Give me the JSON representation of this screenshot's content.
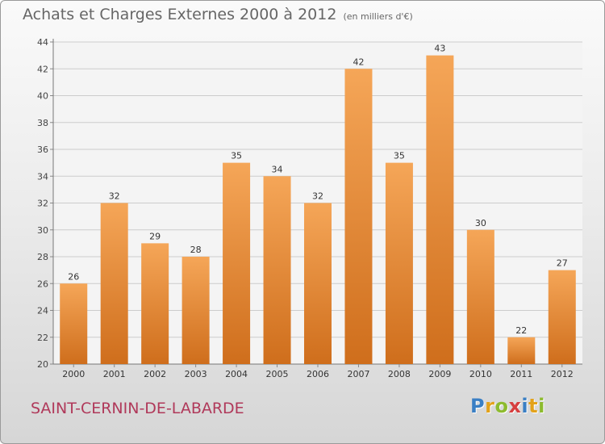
{
  "title": "Achats et Charges Externes 2000 à 2012",
  "subtitle": "(en milliers d'€)",
  "commune": "SAINT-CERNIN-DE-LABARDE",
  "logo": {
    "text": "Proxiti",
    "letters": [
      {
        "char": "P",
        "color": "#3a7fc4"
      },
      {
        "char": "r",
        "color": "#e3a21a"
      },
      {
        "char": "o",
        "color": "#8dbb2e"
      },
      {
        "char": "x",
        "color": "#d63f3f"
      },
      {
        "char": "i",
        "color": "#3a7fc4"
      },
      {
        "char": "t",
        "color": "#e3a21a"
      },
      {
        "char": "i",
        "color": "#8dbb2e"
      }
    ]
  },
  "colors": {
    "bar_top": "#f5a658",
    "bar_bottom": "#cf6e1c",
    "grid": "#cccccc"
  },
  "chart_data": {
    "type": "bar",
    "categories": [
      "2000",
      "2001",
      "2002",
      "2003",
      "2004",
      "2005",
      "2006",
      "2007",
      "2008",
      "2009",
      "2010",
      "2011",
      "2012"
    ],
    "values": [
      26,
      32,
      29,
      28,
      35,
      34,
      32,
      42,
      35,
      43,
      30,
      22,
      27
    ],
    "ylim": [
      20,
      44
    ],
    "yticks": [
      20,
      22,
      24,
      26,
      28,
      30,
      32,
      34,
      36,
      38,
      40,
      42,
      44
    ],
    "grid": true
  }
}
